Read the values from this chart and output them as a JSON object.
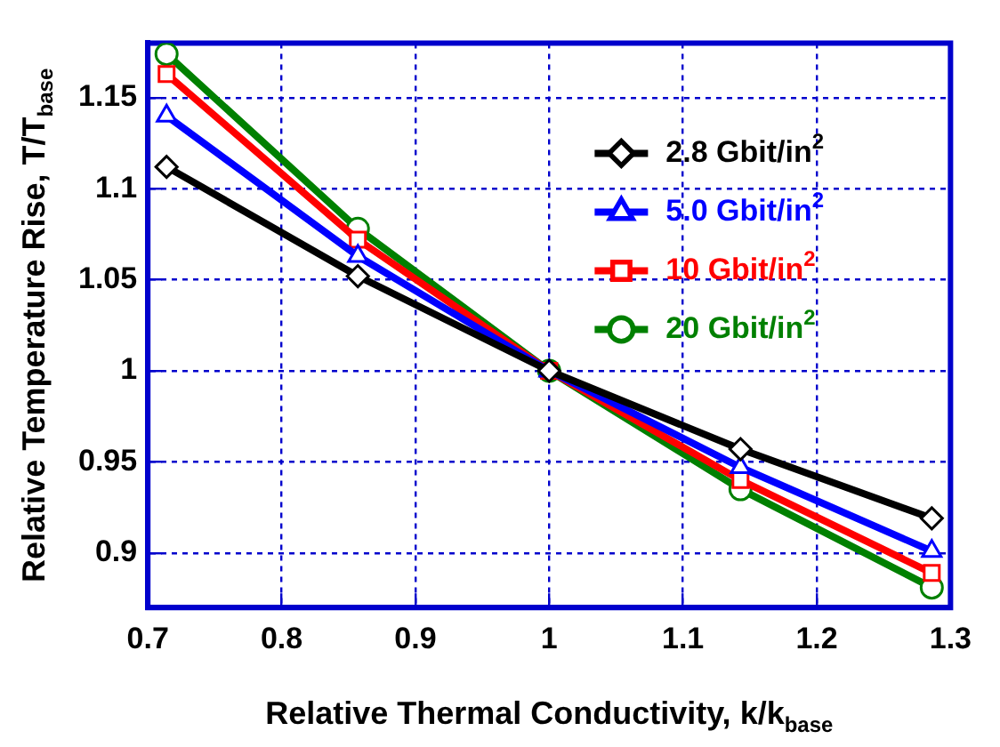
{
  "chart_data": {
    "type": "line",
    "xlabel": "Relative Thermal Conductivity, k/k$_{base}$",
    "ylabel": "Relative Temperature Rise, T/T$_{base}$",
    "x": [
      0.714,
      0.857,
      1,
      1.143,
      1.286
    ],
    "xlim": [
      0.7,
      1.3
    ],
    "xticks": [
      0.7,
      0.8,
      0.9,
      1,
      1.1,
      1.2,
      1.3
    ],
    "ylim": [
      0.87,
      1.18
    ],
    "yticks": [
      0.9,
      0.95,
      1,
      1.05,
      1.1,
      1.15
    ],
    "grid": true,
    "legend": "top right",
    "line_style": "solid",
    "series": [
      {
        "name": "2.8 Gbit/in$^{2}$",
        "color": "#000000",
        "marker": "diamond",
        "values": [
          1.112,
          1.052,
          1,
          0.957,
          0.919
        ]
      },
      {
        "name": "5.0 Gbit/in$^{2}$",
        "color": "#0000ff",
        "marker": "triangle",
        "values": [
          1.14,
          1.063,
          1,
          0.947,
          0.901
        ]
      },
      {
        "name": "10 Gbit/in$^{2}$",
        "color": "#ff0000",
        "marker": "square",
        "values": [
          1.163,
          1.072,
          1,
          0.94,
          0.889
        ]
      },
      {
        "name": "20 Gbit/in$^{2}$",
        "color": "#008000",
        "marker": "circle",
        "values": [
          1.174,
          1.078,
          1,
          0.935,
          0.881
        ]
      }
    ]
  }
}
